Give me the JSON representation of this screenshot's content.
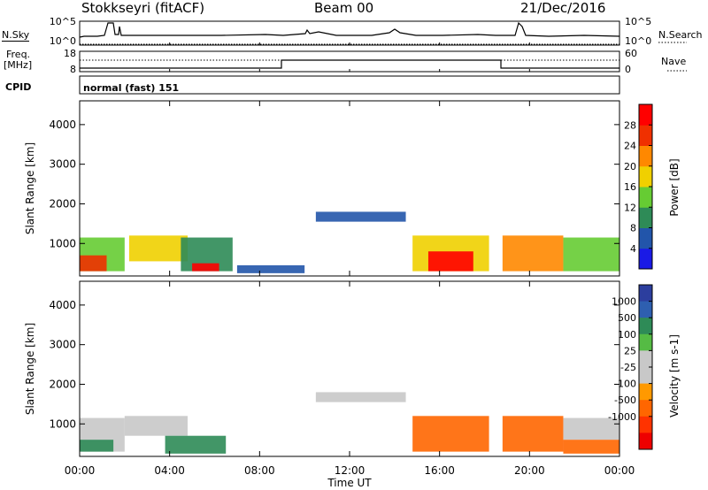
{
  "header": {
    "station": "Stokkseyri (fitACF)",
    "beam": "Beam 00",
    "date": "21/Dec/2016"
  },
  "top_panels": {
    "nsky_label": "N.Sky",
    "nsearch_label": "N.Search",
    "freq_label_1": "Freq.",
    "freq_label_2": "[MHz]",
    "nave_label": "Nave",
    "cpid_label": "CPID",
    "cpid_value": "normal (fast) 151",
    "noise_ticks": [
      "10^5",
      "10^0"
    ],
    "freq_ticks": [
      "18",
      "8"
    ],
    "nave_ticks": [
      "60",
      "0"
    ]
  },
  "colors": {
    "power": [
      "#1a1ae6",
      "#2255aa",
      "#2e8b57",
      "#66cc33",
      "#f0d000",
      "#ff8800",
      "#f03000",
      "#ff0000"
    ],
    "velocity": [
      "#2c3e9e",
      "#2e5fb0",
      "#2e8b57",
      "#55bb44",
      "#c8c8c8",
      "#c8c8c8",
      "#ff9900",
      "#ff6600",
      "#ff3300",
      "#ee0000"
    ]
  },
  "chart_data": [
    {
      "type": "heatmap",
      "title": "",
      "xlabel": "Time UT",
      "ylabel": "Slant Range [km]",
      "x_ticks": [
        "00:00",
        "04:00",
        "08:00",
        "12:00",
        "16:00",
        "20:00",
        "00:00"
      ],
      "xlim_hours": [
        0,
        24
      ],
      "y_ticks": [
        1000,
        2000,
        3000,
        4000
      ],
      "ylim": [
        180,
        4600
      ],
      "colorbar": {
        "label": "Power [dB]",
        "ticks": [
          4,
          8,
          12,
          16,
          20,
          24,
          28
        ],
        "range": [
          0,
          32
        ]
      },
      "regions": [
        {
          "t0": 0.0,
          "t1": 2.0,
          "r0": 300,
          "r1": 1150,
          "value": 12
        },
        {
          "t0": 2.2,
          "t1": 4.8,
          "r0": 550,
          "r1": 1200,
          "value": 16
        },
        {
          "t0": 4.5,
          "t1": 6.8,
          "r0": 300,
          "r1": 1150,
          "value": 10
        },
        {
          "t0": 5.0,
          "t1": 6.2,
          "r0": 300,
          "r1": 500,
          "value": 28
        },
        {
          "t0": 7.0,
          "t1": 10.0,
          "r0": 250,
          "r1": 450,
          "value": 6
        },
        {
          "t0": 10.5,
          "t1": 14.5,
          "r0": 1550,
          "r1": 1800,
          "value": 7
        },
        {
          "t0": 14.8,
          "t1": 18.2,
          "r0": 300,
          "r1": 1200,
          "value": 18
        },
        {
          "t0": 15.5,
          "t1": 17.5,
          "r0": 300,
          "r1": 800,
          "value": 28
        },
        {
          "t0": 18.8,
          "t1": 21.5,
          "r0": 300,
          "r1": 1200,
          "value": 22
        },
        {
          "t0": 21.5,
          "t1": 24.0,
          "r0": 300,
          "r1": 1150,
          "value": 14
        },
        {
          "t0": 0.0,
          "t1": 1.2,
          "r0": 300,
          "r1": 700,
          "value": 26
        }
      ]
    },
    {
      "type": "heatmap",
      "title": "",
      "xlabel": "Time UT",
      "ylabel": "Slant Range [km]",
      "x_ticks": [
        "00:00",
        "04:00",
        "08:00",
        "12:00",
        "16:00",
        "20:00",
        "00:00"
      ],
      "xlim_hours": [
        0,
        24
      ],
      "y_ticks": [
        1000,
        2000,
        3000,
        4000
      ],
      "ylim": [
        180,
        4600
      ],
      "colorbar": {
        "label": "Velocity [m s-1]",
        "ticks": [
          1000,
          500,
          100,
          25,
          -25,
          -100,
          -500,
          -1000
        ]
      },
      "regions": [
        {
          "t0": 0.0,
          "t1": 2.0,
          "r0": 300,
          "r1": 1150,
          "value": 0
        },
        {
          "t0": 0.0,
          "t1": 1.5,
          "r0": 300,
          "r1": 600,
          "value": 150
        },
        {
          "t0": 2.0,
          "t1": 4.8,
          "r0": 700,
          "r1": 1200,
          "value": 0
        },
        {
          "t0": 3.8,
          "t1": 6.5,
          "r0": 250,
          "r1": 700,
          "value": 300
        },
        {
          "t0": 10.5,
          "t1": 14.5,
          "r0": 1550,
          "r1": 1800,
          "value": 0
        },
        {
          "t0": 14.8,
          "t1": 18.2,
          "r0": 300,
          "r1": 1200,
          "value": -200
        },
        {
          "t0": 18.8,
          "t1": 21.5,
          "r0": 300,
          "r1": 1200,
          "value": -200
        },
        {
          "t0": 21.5,
          "t1": 24.0,
          "r0": 600,
          "r1": 1150,
          "value": 0
        },
        {
          "t0": 21.5,
          "t1": 24.0,
          "r0": 250,
          "r1": 600,
          "value": -200
        }
      ]
    }
  ]
}
